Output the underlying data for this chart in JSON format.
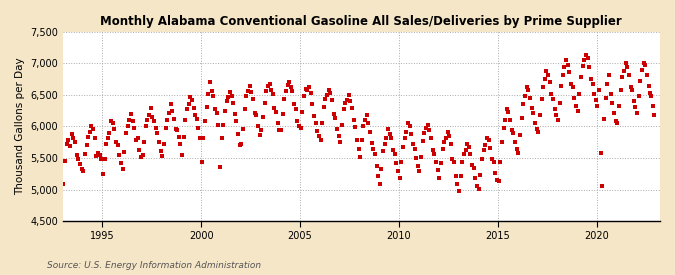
{
  "title": "Monthly Alabama Conventional Gasoline All Sales/Deliveries by Prime Supplier",
  "ylabel": "Thousand Gallons per Day",
  "source": "Source: U.S. Energy Information Administration",
  "figure_bg": "#f5e6c8",
  "plot_bg": "#ffffff",
  "dot_color": "#cc0000",
  "dot_size": 5,
  "ylim": [
    4500,
    7500
  ],
  "yticks": [
    4500,
    5000,
    5500,
    6000,
    6500,
    7000,
    7500
  ],
  "ytick_labels": [
    "4,500",
    "5,000",
    "5,500",
    "6,000",
    "6,500",
    "7,000",
    "7,500"
  ],
  "xticks_years": [
    1995,
    2000,
    2005,
    2010,
    2015,
    2020
  ],
  "xlim": [
    1993.0,
    2023.2
  ],
  "data": [
    [
      1993.04,
      5083
    ],
    [
      1993.12,
      5450
    ],
    [
      1993.21,
      5730
    ],
    [
      1993.29,
      5780
    ],
    [
      1993.37,
      5690
    ],
    [
      1993.46,
      5880
    ],
    [
      1993.54,
      5820
    ],
    [
      1993.62,
      5760
    ],
    [
      1993.71,
      5540
    ],
    [
      1993.79,
      5480
    ],
    [
      1993.87,
      5410
    ],
    [
      1993.96,
      5330
    ],
    [
      1994.04,
      5290
    ],
    [
      1994.12,
      5560
    ],
    [
      1994.21,
      5710
    ],
    [
      1994.29,
      5840
    ],
    [
      1994.37,
      5910
    ],
    [
      1994.46,
      6010
    ],
    [
      1994.54,
      5960
    ],
    [
      1994.62,
      5820
    ],
    [
      1994.71,
      5530
    ],
    [
      1994.79,
      5580
    ],
    [
      1994.87,
      5540
    ],
    [
      1994.96,
      5480
    ],
    [
      1995.04,
      5250
    ],
    [
      1995.12,
      5490
    ],
    [
      1995.21,
      5720
    ],
    [
      1995.29,
      5810
    ],
    [
      1995.37,
      5900
    ],
    [
      1995.46,
      6080
    ],
    [
      1995.54,
      6060
    ],
    [
      1995.62,
      5960
    ],
    [
      1995.71,
      5750
    ],
    [
      1995.79,
      5710
    ],
    [
      1995.87,
      5550
    ],
    [
      1995.96,
      5420
    ],
    [
      1996.04,
      5330
    ],
    [
      1996.12,
      5600
    ],
    [
      1996.21,
      5890
    ],
    [
      1996.29,
      6000
    ],
    [
      1996.37,
      6100
    ],
    [
      1996.46,
      6200
    ],
    [
      1996.54,
      6080
    ],
    [
      1996.62,
      5980
    ],
    [
      1996.71,
      5780
    ],
    [
      1996.79,
      5820
    ],
    [
      1996.87,
      5620
    ],
    [
      1996.96,
      5510
    ],
    [
      1997.04,
      5540
    ],
    [
      1997.12,
      5760
    ],
    [
      1997.21,
      6010
    ],
    [
      1997.29,
      6100
    ],
    [
      1997.37,
      6180
    ],
    [
      1997.46,
      6300
    ],
    [
      1997.54,
      6150
    ],
    [
      1997.62,
      6080
    ],
    [
      1997.71,
      5980
    ],
    [
      1997.79,
      5900
    ],
    [
      1997.87,
      5750
    ],
    [
      1997.96,
      5610
    ],
    [
      1998.04,
      5530
    ],
    [
      1998.12,
      5720
    ],
    [
      1998.21,
      5980
    ],
    [
      1998.29,
      6100
    ],
    [
      1998.37,
      6210
    ],
    [
      1998.46,
      6350
    ],
    [
      1998.54,
      6250
    ],
    [
      1998.62,
      6120
    ],
    [
      1998.71,
      5960
    ],
    [
      1998.79,
      5950
    ],
    [
      1998.87,
      5830
    ],
    [
      1998.96,
      5730
    ],
    [
      1999.04,
      5540
    ],
    [
      1999.12,
      5830
    ],
    [
      1999.21,
      6110
    ],
    [
      1999.29,
      6280
    ],
    [
      1999.37,
      6350
    ],
    [
      1999.46,
      6470
    ],
    [
      1999.54,
      6420
    ],
    [
      1999.62,
      6300
    ],
    [
      1999.71,
      6180
    ],
    [
      1999.79,
      6120
    ],
    [
      1999.87,
      5980
    ],
    [
      1999.96,
      5820
    ],
    [
      2000.04,
      5440
    ],
    [
      2000.12,
      5820
    ],
    [
      2000.21,
      6080
    ],
    [
      2000.29,
      6310
    ],
    [
      2000.37,
      6510
    ],
    [
      2000.46,
      6700
    ],
    [
      2000.54,
      6560
    ],
    [
      2000.62,
      6490
    ],
    [
      2000.71,
      6280
    ],
    [
      2000.79,
      6210
    ],
    [
      2000.87,
      6020
    ],
    [
      2000.96,
      5350
    ],
    [
      2001.04,
      5810
    ],
    [
      2001.12,
      6020
    ],
    [
      2001.21,
      6250
    ],
    [
      2001.29,
      6410
    ],
    [
      2001.37,
      6460
    ],
    [
      2001.46,
      6540
    ],
    [
      2001.54,
      6480
    ],
    [
      2001.62,
      6380
    ],
    [
      2001.71,
      6200
    ],
    [
      2001.79,
      6090
    ],
    [
      2001.87,
      5880
    ],
    [
      2001.96,
      5710
    ],
    [
      2002.04,
      5730
    ],
    [
      2002.12,
      5960
    ],
    [
      2002.21,
      6280
    ],
    [
      2002.29,
      6480
    ],
    [
      2002.37,
      6570
    ],
    [
      2002.46,
      6650
    ],
    [
      2002.54,
      6550
    ],
    [
      2002.62,
      6430
    ],
    [
      2002.71,
      6210
    ],
    [
      2002.79,
      6180
    ],
    [
      2002.87,
      6010
    ],
    [
      2002.96,
      5870
    ],
    [
      2003.04,
      5950
    ],
    [
      2003.12,
      6150
    ],
    [
      2003.21,
      6380
    ],
    [
      2003.29,
      6560
    ],
    [
      2003.37,
      6640
    ],
    [
      2003.46,
      6680
    ],
    [
      2003.54,
      6580
    ],
    [
      2003.62,
      6520
    ],
    [
      2003.71,
      6290
    ],
    [
      2003.79,
      6230
    ],
    [
      2003.87,
      6050
    ],
    [
      2003.96,
      5950
    ],
    [
      2004.04,
      5940
    ],
    [
      2004.12,
      6200
    ],
    [
      2004.21,
      6430
    ],
    [
      2004.29,
      6570
    ],
    [
      2004.37,
      6660
    ],
    [
      2004.46,
      6700
    ],
    [
      2004.54,
      6620
    ],
    [
      2004.62,
      6570
    ],
    [
      2004.71,
      6350
    ],
    [
      2004.79,
      6270
    ],
    [
      2004.87,
      6090
    ],
    [
      2004.96,
      6010
    ],
    [
      2005.04,
      5980
    ],
    [
      2005.12,
      6230
    ],
    [
      2005.21,
      6480
    ],
    [
      2005.29,
      6600
    ],
    [
      2005.37,
      6580
    ],
    [
      2005.46,
      6620
    ],
    [
      2005.54,
      6530
    ],
    [
      2005.62,
      6350
    ],
    [
      2005.71,
      6160
    ],
    [
      2005.79,
      6060
    ],
    [
      2005.87,
      5930
    ],
    [
      2005.96,
      5850
    ],
    [
      2006.04,
      5780
    ],
    [
      2006.12,
      6050
    ],
    [
      2006.21,
      6310
    ],
    [
      2006.29,
      6440
    ],
    [
      2006.37,
      6500
    ],
    [
      2006.46,
      6580
    ],
    [
      2006.54,
      6530
    ],
    [
      2006.62,
      6420
    ],
    [
      2006.71,
      6200
    ],
    [
      2006.79,
      6130
    ],
    [
      2006.87,
      5960
    ],
    [
      2006.96,
      5850
    ],
    [
      2007.04,
      5760
    ],
    [
      2007.12,
      6020
    ],
    [
      2007.21,
      6280
    ],
    [
      2007.29,
      6380
    ],
    [
      2007.37,
      6420
    ],
    [
      2007.46,
      6500
    ],
    [
      2007.54,
      6410
    ],
    [
      2007.62,
      6300
    ],
    [
      2007.71,
      6100
    ],
    [
      2007.79,
      5990
    ],
    [
      2007.87,
      5780
    ],
    [
      2007.96,
      5640
    ],
    [
      2008.04,
      5520
    ],
    [
      2008.12,
      5780
    ],
    [
      2008.21,
      6010
    ],
    [
      2008.29,
      6100
    ],
    [
      2008.37,
      6180
    ],
    [
      2008.46,
      6050
    ],
    [
      2008.54,
      5920
    ],
    [
      2008.62,
      5740
    ],
    [
      2008.71,
      5640
    ],
    [
      2008.79,
      5560
    ],
    [
      2008.87,
      5380
    ],
    [
      2008.96,
      5210
    ],
    [
      2009.04,
      5080
    ],
    [
      2009.12,
      5320
    ],
    [
      2009.21,
      5610
    ],
    [
      2009.29,
      5720
    ],
    [
      2009.37,
      5820
    ],
    [
      2009.46,
      5960
    ],
    [
      2009.54,
      5880
    ],
    [
      2009.62,
      5810
    ],
    [
      2009.71,
      5620
    ],
    [
      2009.79,
      5560
    ],
    [
      2009.87,
      5420
    ],
    [
      2009.96,
      5290
    ],
    [
      2010.04,
      5180
    ],
    [
      2010.12,
      5430
    ],
    [
      2010.21,
      5680
    ],
    [
      2010.29,
      5820
    ],
    [
      2010.37,
      5920
    ],
    [
      2010.46,
      6050
    ],
    [
      2010.54,
      6000
    ],
    [
      2010.62,
      5880
    ],
    [
      2010.71,
      5720
    ],
    [
      2010.79,
      5650
    ],
    [
      2010.87,
      5500
    ],
    [
      2010.96,
      5380
    ],
    [
      2011.04,
      5290
    ],
    [
      2011.12,
      5520
    ],
    [
      2011.21,
      5770
    ],
    [
      2011.29,
      5890
    ],
    [
      2011.37,
      5980
    ],
    [
      2011.46,
      6020
    ],
    [
      2011.54,
      5940
    ],
    [
      2011.62,
      5820
    ],
    [
      2011.71,
      5620
    ],
    [
      2011.79,
      5560
    ],
    [
      2011.87,
      5430
    ],
    [
      2011.96,
      5310
    ],
    [
      2012.04,
      5180
    ],
    [
      2012.12,
      5420
    ],
    [
      2012.21,
      5650
    ],
    [
      2012.29,
      5760
    ],
    [
      2012.37,
      5820
    ],
    [
      2012.46,
      5910
    ],
    [
      2012.54,
      5850
    ],
    [
      2012.62,
      5730
    ],
    [
      2012.71,
      5480
    ],
    [
      2012.79,
      5430
    ],
    [
      2012.87,
      5220
    ],
    [
      2012.96,
      5090
    ],
    [
      2013.04,
      4980
    ],
    [
      2013.12,
      5210
    ],
    [
      2013.21,
      5440
    ],
    [
      2013.29,
      5560
    ],
    [
      2013.37,
      5620
    ],
    [
      2013.46,
      5720
    ],
    [
      2013.54,
      5680
    ],
    [
      2013.62,
      5560
    ],
    [
      2013.71,
      5390
    ],
    [
      2013.79,
      5340
    ],
    [
      2013.87,
      5180
    ],
    [
      2013.96,
      5060
    ],
    [
      2014.04,
      5010
    ],
    [
      2014.12,
      5230
    ],
    [
      2014.21,
      5480
    ],
    [
      2014.29,
      5620
    ],
    [
      2014.37,
      5700
    ],
    [
      2014.46,
      5820
    ],
    [
      2014.54,
      5780
    ],
    [
      2014.62,
      5660
    ],
    [
      2014.71,
      5490
    ],
    [
      2014.79,
      5440
    ],
    [
      2014.87,
      5260
    ],
    [
      2014.96,
      5150
    ],
    [
      2015.04,
      5140
    ],
    [
      2015.12,
      5430
    ],
    [
      2015.21,
      5750
    ],
    [
      2015.29,
      5980
    ],
    [
      2015.37,
      6100
    ],
    [
      2015.46,
      6280
    ],
    [
      2015.54,
      6230
    ],
    [
      2015.62,
      6110
    ],
    [
      2015.71,
      5950
    ],
    [
      2015.79,
      5900
    ],
    [
      2015.87,
      5760
    ],
    [
      2015.96,
      5650
    ],
    [
      2016.04,
      5580
    ],
    [
      2016.12,
      5870
    ],
    [
      2016.21,
      6130
    ],
    [
      2016.29,
      6350
    ],
    [
      2016.37,
      6480
    ],
    [
      2016.46,
      6620
    ],
    [
      2016.54,
      6580
    ],
    [
      2016.62,
      6450
    ],
    [
      2016.71,
      6290
    ],
    [
      2016.79,
      6210
    ],
    [
      2016.87,
      6050
    ],
    [
      2016.96,
      5960
    ],
    [
      2017.04,
      5920
    ],
    [
      2017.12,
      6180
    ],
    [
      2017.21,
      6430
    ],
    [
      2017.29,
      6630
    ],
    [
      2017.37,
      6750
    ],
    [
      2017.46,
      6880
    ],
    [
      2017.54,
      6820
    ],
    [
      2017.62,
      6700
    ],
    [
      2017.71,
      6510
    ],
    [
      2017.79,
      6430
    ],
    [
      2017.87,
      6280
    ],
    [
      2017.96,
      6180
    ],
    [
      2018.04,
      6100
    ],
    [
      2018.12,
      6380
    ],
    [
      2018.21,
      6640
    ],
    [
      2018.29,
      6820
    ],
    [
      2018.37,
      6950
    ],
    [
      2018.46,
      7050
    ],
    [
      2018.54,
      6980
    ],
    [
      2018.62,
      6860
    ],
    [
      2018.71,
      6680
    ],
    [
      2018.79,
      6620
    ],
    [
      2018.87,
      6450
    ],
    [
      2018.96,
      6330
    ],
    [
      2019.04,
      6250
    ],
    [
      2019.12,
      6520
    ],
    [
      2019.21,
      6780
    ],
    [
      2019.29,
      6960
    ],
    [
      2019.37,
      7050
    ],
    [
      2019.46,
      7140
    ],
    [
      2019.54,
      7080
    ],
    [
      2019.62,
      6950
    ],
    [
      2019.71,
      6750
    ],
    [
      2019.79,
      6680
    ],
    [
      2019.87,
      6520
    ],
    [
      2019.96,
      6420
    ],
    [
      2020.04,
      6320
    ],
    [
      2020.12,
      6580
    ],
    [
      2020.21,
      5580
    ],
    [
      2020.29,
      5060
    ],
    [
      2020.37,
      6120
    ],
    [
      2020.46,
      6450
    ],
    [
      2020.54,
      6680
    ],
    [
      2020.62,
      6820
    ],
    [
      2020.71,
      6520
    ],
    [
      2020.79,
      6380
    ],
    [
      2020.87,
      6220
    ],
    [
      2020.96,
      6080
    ],
    [
      2021.04,
      6050
    ],
    [
      2021.12,
      6320
    ],
    [
      2021.21,
      6580
    ],
    [
      2021.29,
      6780
    ],
    [
      2021.37,
      6880
    ],
    [
      2021.46,
      7000
    ],
    [
      2021.54,
      6950
    ],
    [
      2021.62,
      6820
    ],
    [
      2021.71,
      6630
    ],
    [
      2021.79,
      6580
    ],
    [
      2021.87,
      6410
    ],
    [
      2021.96,
      6310
    ],
    [
      2022.04,
      6220
    ],
    [
      2022.12,
      6480
    ],
    [
      2022.21,
      6720
    ],
    [
      2022.29,
      6900
    ],
    [
      2022.37,
      7000
    ],
    [
      2022.46,
      6980
    ],
    [
      2022.54,
      6820
    ],
    [
      2022.62,
      6650
    ],
    [
      2022.67,
      6530
    ],
    [
      2022.75,
      6480
    ],
    [
      2022.83,
      6320
    ],
    [
      2022.92,
      6180
    ]
  ]
}
